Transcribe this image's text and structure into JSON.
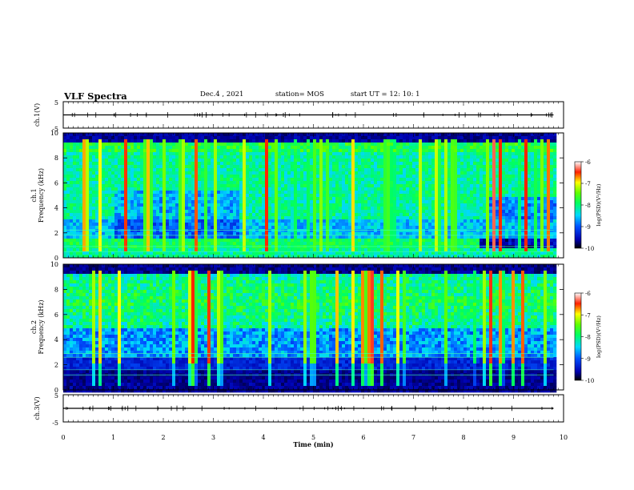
{
  "header": {
    "title": "VLF Spectra",
    "date": "Dec.4 , 2021",
    "station": "station= MOS",
    "start": "start  UT =   12: 10: 1"
  },
  "chart_data": [
    {
      "type": "line",
      "ylabel": "ch.1(V)",
      "ylim": [
        -5,
        5
      ],
      "yticks": [
        "5",
        "-5"
      ],
      "trace_value": 0
    },
    {
      "type": "heatmap",
      "ylabel_top": "ch.1",
      "ylabel": "Frequency (kHz)",
      "ylim": [
        0,
        10
      ],
      "yticks": [
        "0",
        "2",
        "4",
        "6",
        "8",
        "10"
      ],
      "colorbar": {
        "label": "log(PSD)(V²/Hz)",
        "ticks": [
          "-6",
          "-7",
          "-8",
          "-9",
          "-10"
        ],
        "range": [
          -10,
          -6
        ]
      }
    },
    {
      "type": "heatmap",
      "ylabel_top": "ch.2",
      "ylabel": "Frequency (kHz)",
      "ylim": [
        0,
        10
      ],
      "yticks": [
        "0",
        "2",
        "4",
        "6",
        "8",
        "10"
      ],
      "colorbar": {
        "label": "log(PSD)(V²/Hz)",
        "ticks": [
          "-6",
          "-7",
          "-8",
          "-9",
          "-10"
        ],
        "range": [
          -10,
          -6
        ]
      }
    },
    {
      "type": "line",
      "ylabel": "ch.3(V)",
      "ylim": [
        -5,
        5
      ],
      "yticks": [
        "5",
        "-5"
      ],
      "trace_value": 0
    }
  ],
  "xaxis": {
    "label": "Time (min)",
    "xlim": [
      0,
      10
    ],
    "ticks": [
      "0",
      "1",
      "2",
      "3",
      "4",
      "5",
      "6",
      "7",
      "8",
      "9",
      "10"
    ],
    "data_end": 9.8
  }
}
